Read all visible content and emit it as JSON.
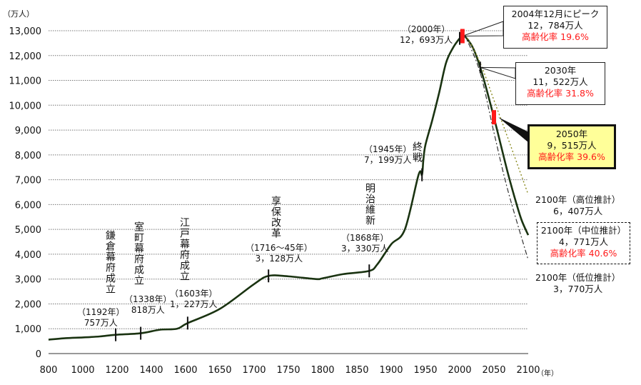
{
  "chart_data": {
    "type": "line",
    "yunit": "（万人）",
    "xunit": "（年）",
    "ylim": [
      0,
      13000
    ],
    "yticks": [
      "0",
      "1,000",
      "2,000",
      "3,000",
      "4,000",
      "5,000",
      "6,000",
      "7,000",
      "8,000",
      "9,000",
      "10,000",
      "11,000",
      "12,000",
      "13,000"
    ],
    "xticks": [
      "800",
      "1000",
      "1200",
      "1400",
      "1600",
      "1650",
      "1700",
      "1750",
      "1800",
      "1850",
      "1900",
      "1950",
      "2000",
      "2050",
      "2100"
    ],
    "grid": true,
    "series": [
      {
        "style": "solid",
        "color": "#1a3311",
        "x": [
          800,
          900,
          1000,
          1100,
          1192,
          1338,
          1450,
          1550,
          1603,
          1650,
          1700,
          1721,
          1750,
          1790,
          1800,
          1830,
          1868,
          1880,
          1900,
          1920,
          1940,
          1945,
          1947,
          1950,
          1960,
          1970,
          1980,
          1990,
          2000,
          2004,
          2010,
          2020,
          2030,
          2040,
          2050,
          2060,
          2070,
          2080,
          2090,
          2100
        ],
        "y": [
          560,
          620,
          650,
          690,
          757,
          818,
          960,
          1000,
          1227,
          1800,
          2800,
          3128,
          3110,
          3000,
          3030,
          3200,
          3330,
          3600,
          4400,
          5000,
          7200,
          7199,
          7800,
          8400,
          9400,
          10500,
          11700,
          12300,
          12693,
          12784,
          12700,
          12274,
          11522,
          10556,
          9515,
          8400,
          7300,
          6300,
          5400,
          4771
        ]
      },
      {
        "style": "dotted",
        "color": "#8a8a20",
        "x": [
          2004,
          2010,
          2030,
          2050,
          2070,
          2100
        ],
        "y": [
          12784,
          12750,
          11700,
          10200,
          8700,
          6407
        ]
      },
      {
        "style": "dashdot",
        "color": "#333333",
        "x": [
          2004,
          2010,
          2030,
          2050,
          2070,
          2100
        ],
        "y": [
          12784,
          12650,
          11300,
          8900,
          6600,
          3770
        ]
      }
    ],
    "events": [
      {
        "label": "鎌倉幕府成立",
        "year_label": "（1192年）",
        "value_label": "757万人",
        "year": 1192,
        "value": 757
      },
      {
        "label": "室町幕府成立",
        "year_label": "（1338年）",
        "value_label": "818万人",
        "year": 1338,
        "value": 818
      },
      {
        "label": "江戸幕府成立",
        "year_label": "（1603年）",
        "value_label": "1，227万人",
        "year": 1603,
        "value": 1227
      },
      {
        "label": "享保改革",
        "year_label": "（1716～45年）",
        "value_label": "3，128万人",
        "year": 1721,
        "value": 3128
      },
      {
        "label": "明治維新",
        "year_label": "（1868年）",
        "value_label": "3，330万人",
        "year": 1868,
        "value": 3330
      },
      {
        "label": "終戦",
        "year_label": "（1945年）",
        "value_label": "7，199万人",
        "year": 1945,
        "value": 7199
      },
      {
        "label": "",
        "year_label": "（2000年）",
        "value_label": "12，693万人",
        "year": 2000,
        "value": 12693
      }
    ],
    "callouts": {
      "peak": {
        "line1": "2004年12月にピーク",
        "line2": "12，784万人",
        "line3": "高齢化率 19.6%",
        "year": 2004,
        "value": 12784
      },
      "y2030": {
        "line1": "2030年",
        "line2": "11，522万人",
        "line3": "高齢化率 31.8%",
        "year": 2030,
        "value": 11522
      },
      "y2050": {
        "line1": "2050年",
        "line2": "9，515万人",
        "line3": "高齢化率 39.6%",
        "year": 2050,
        "value": 9515
      },
      "high": {
        "line1": "2100年（高位推計）",
        "line2": "6，407万人"
      },
      "mid": {
        "line1": "2100年（中位推計）",
        "line2": "4，771万人",
        "line3": "高齢化率 40.6%"
      },
      "low": {
        "line1": "2100年（低位推計）",
        "line2": "3，770万人"
      }
    }
  }
}
